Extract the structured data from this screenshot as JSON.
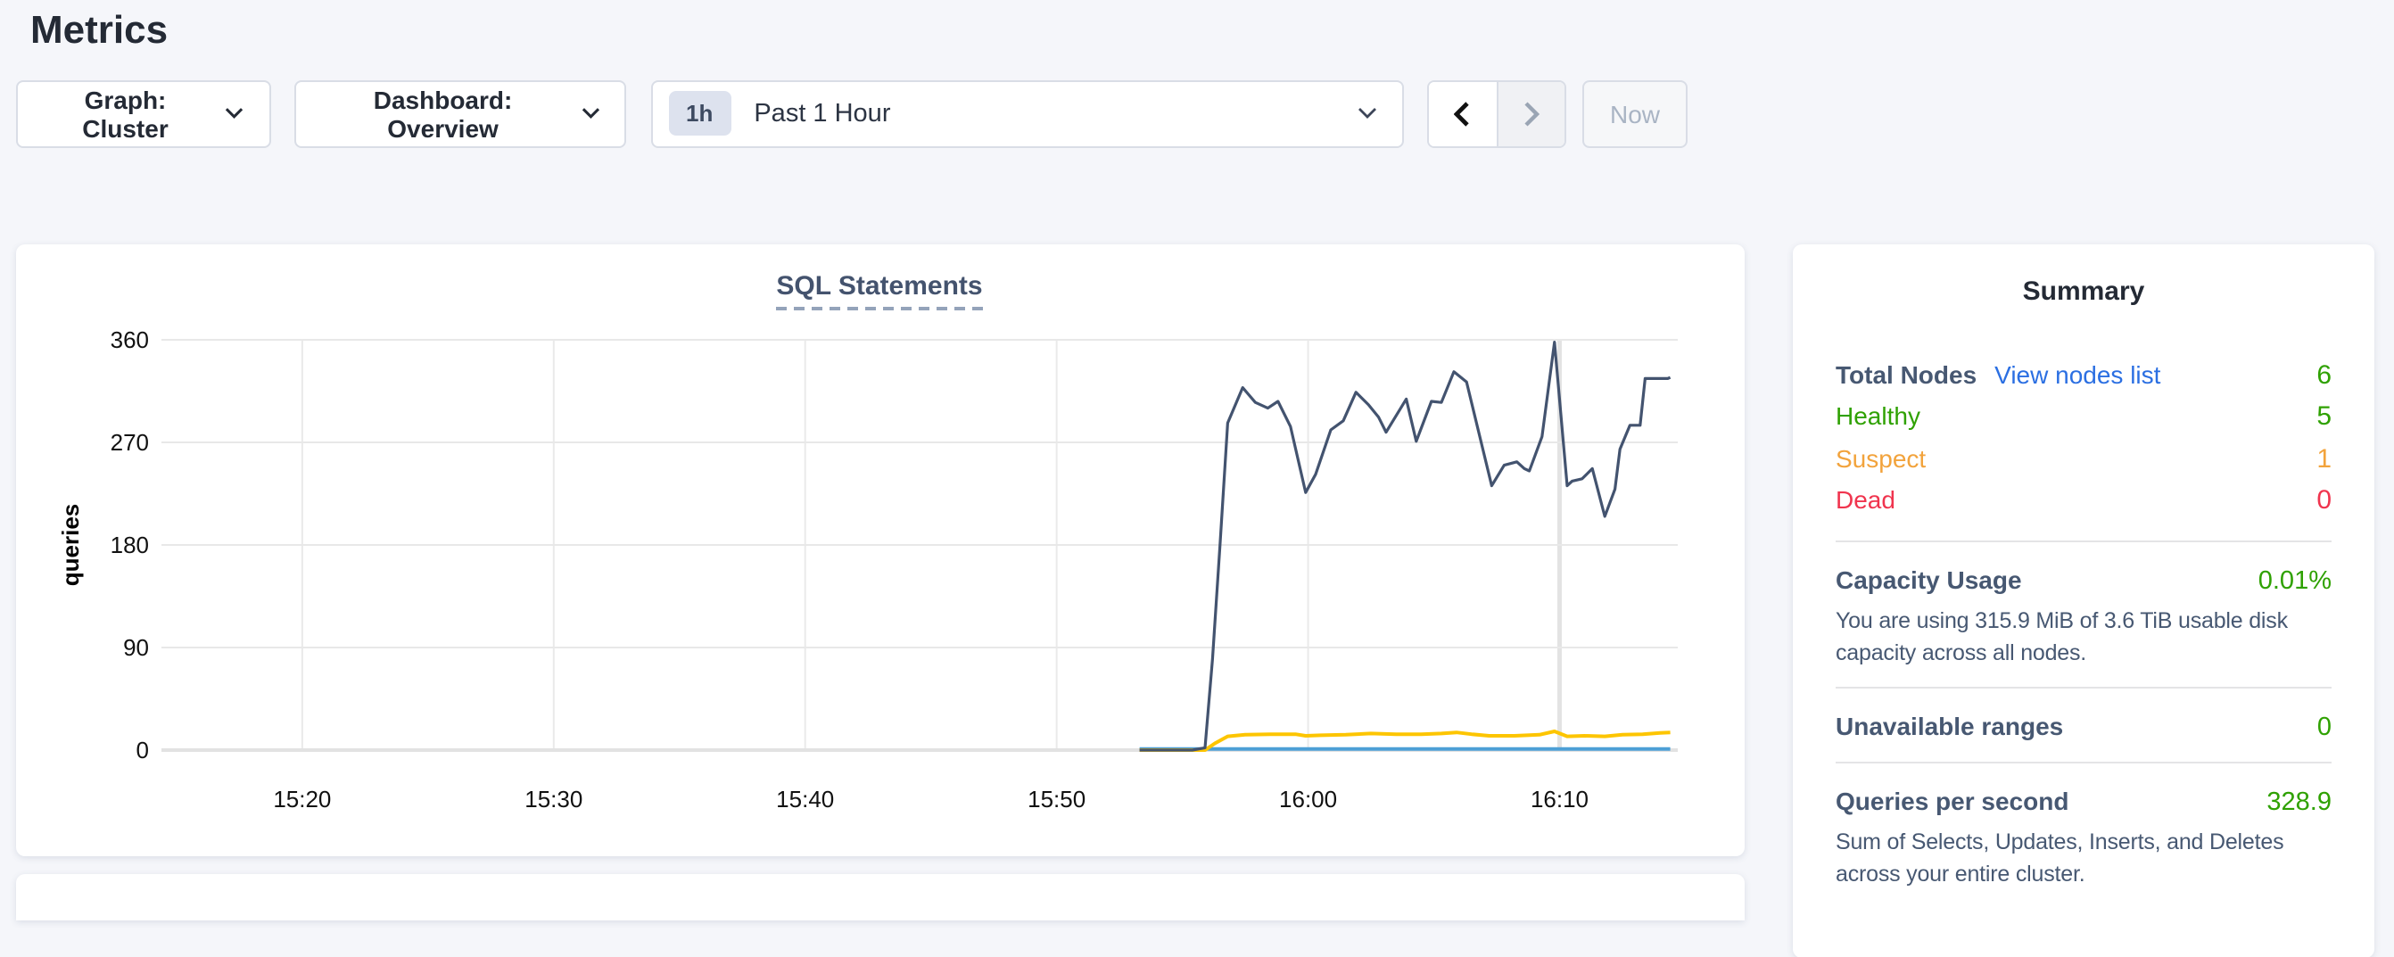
{
  "page": {
    "title": "Metrics"
  },
  "toolbar": {
    "graph_dropdown": "Graph: Cluster",
    "dashboard_dropdown": "Dashboard: Overview",
    "time_badge": "1h",
    "time_label": "Past 1 Hour",
    "now_button": "Now"
  },
  "summary": {
    "title": "Summary",
    "node_rows": [
      {
        "label": "Total Nodes",
        "link": "View nodes list",
        "value": "6",
        "color": "green"
      },
      {
        "label": "Healthy",
        "value": "5",
        "color": "green"
      },
      {
        "label": "Suspect",
        "value": "1",
        "color": "orange"
      },
      {
        "label": "Dead",
        "value": "0",
        "color": "red"
      }
    ],
    "sections": [
      {
        "heading": "Capacity Usage",
        "value": "0.01%",
        "caption": "You are using 315.9 MiB of 3.6 TiB usable disk capacity across all nodes."
      },
      {
        "heading": "Unavailable ranges",
        "value": "0",
        "caption": ""
      },
      {
        "heading": "Queries per second",
        "value": "328.9",
        "caption": "Sum of Selects, Updates, Inserts, and Deletes across your entire cluster."
      }
    ]
  },
  "colors": {
    "green": "#2fa102",
    "orange": "#f2a33c",
    "red": "#f0344e",
    "link": "#2b6fe2",
    "navy_series": "#43536f",
    "yellow_series": "#fdc500",
    "blue_series": "#4c9fd6"
  },
  "chart_data": {
    "type": "line",
    "title": "SQL Statements",
    "ylabel": "queries",
    "x_unit": "minutes after 15:20",
    "xlim": [
      -5.6,
      54.7
    ],
    "ylim": [
      0,
      360
    ],
    "yticks": [
      0,
      90,
      180,
      270,
      360
    ],
    "xticks": [
      {
        "t": 0,
        "label": "15:20"
      },
      {
        "t": 10,
        "label": "15:30"
      },
      {
        "t": 20,
        "label": "15:40"
      },
      {
        "t": 30,
        "label": "15:50"
      },
      {
        "t": 40,
        "label": "16:00"
      },
      {
        "t": 50,
        "label": "16:10"
      }
    ],
    "grid": true,
    "legend": "none",
    "series": [
      {
        "name": "light-blue",
        "color": "#4c9fd6",
        "stroke_width": 2,
        "points": [
          [
            33.3,
            1
          ],
          [
            54.4,
            1
          ]
        ]
      },
      {
        "name": "yellow",
        "color": "#fdc500",
        "stroke_width": 2,
        "points": [
          [
            33.3,
            0
          ],
          [
            35.9,
            0
          ],
          [
            36.3,
            6
          ],
          [
            36.8,
            12
          ],
          [
            37.5,
            13.5
          ],
          [
            38.5,
            14
          ],
          [
            39.5,
            14
          ],
          [
            39.9,
            12.5
          ],
          [
            40.5,
            13
          ],
          [
            41.5,
            13.5
          ],
          [
            42.5,
            14.5
          ],
          [
            43.5,
            14
          ],
          [
            44.5,
            14
          ],
          [
            45.3,
            14.5
          ],
          [
            45.9,
            15.5
          ],
          [
            46.5,
            14
          ],
          [
            47.2,
            12.5
          ],
          [
            48.2,
            12.5
          ],
          [
            49.2,
            13.5
          ],
          [
            49.8,
            16.5
          ],
          [
            50.3,
            12
          ],
          [
            51.0,
            12.5
          ],
          [
            51.8,
            12
          ],
          [
            52.5,
            13.5
          ],
          [
            53.3,
            14
          ],
          [
            54.0,
            15
          ],
          [
            54.4,
            15.5
          ]
        ]
      },
      {
        "name": "dark-navy",
        "color": "#43536f",
        "stroke_width": 1.6,
        "points": [
          [
            33.3,
            0
          ],
          [
            34.0,
            0
          ],
          [
            34.7,
            0
          ],
          [
            35.4,
            0
          ],
          [
            35.9,
            2
          ],
          [
            36.2,
            80
          ],
          [
            36.5,
            180
          ],
          [
            36.8,
            287
          ],
          [
            37.4,
            318
          ],
          [
            37.9,
            305
          ],
          [
            38.4,
            300
          ],
          [
            38.8,
            306
          ],
          [
            39.3,
            284
          ],
          [
            39.9,
            226
          ],
          [
            40.3,
            242
          ],
          [
            40.9,
            281
          ],
          [
            41.4,
            289
          ],
          [
            41.9,
            314
          ],
          [
            42.4,
            303
          ],
          [
            42.8,
            292
          ],
          [
            43.1,
            279
          ],
          [
            43.9,
            308
          ],
          [
            44.3,
            271
          ],
          [
            44.9,
            306
          ],
          [
            45.3,
            305
          ],
          [
            45.8,
            332
          ],
          [
            46.3,
            323
          ],
          [
            47.3,
            232
          ],
          [
            47.8,
            250
          ],
          [
            48.3,
            253
          ],
          [
            48.6,
            247
          ],
          [
            48.8,
            245
          ],
          [
            49.3,
            275
          ],
          [
            49.8,
            358
          ],
          [
            50.3,
            232
          ],
          [
            50.5,
            236
          ],
          [
            50.9,
            238
          ],
          [
            51.3,
            247
          ],
          [
            51.8,
            205
          ],
          [
            52.2,
            229
          ],
          [
            52.4,
            264
          ],
          [
            52.8,
            285
          ],
          [
            53.2,
            285
          ],
          [
            53.4,
            326
          ],
          [
            54.3,
            326
          ],
          [
            54.4,
            327
          ]
        ]
      }
    ]
  }
}
